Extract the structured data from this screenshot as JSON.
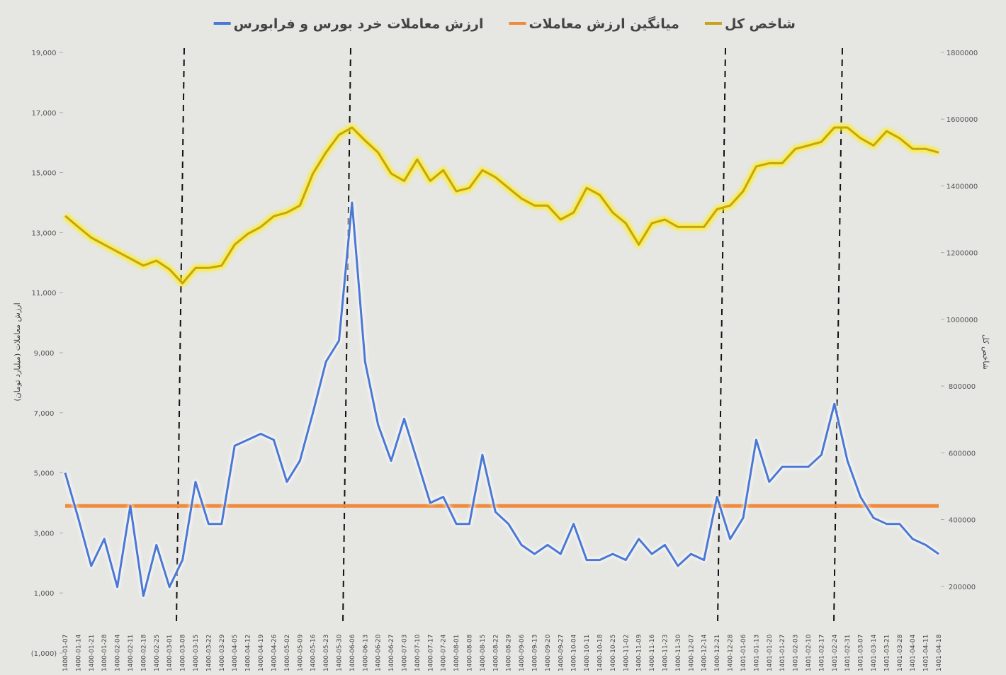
{
  "chart_data": {
    "type": "line",
    "legend": "top",
    "ylabel": "ارزش معاملات (میلیارد تومان)",
    "y2label": "شاخص کل",
    "ylim": [
      -1000,
      19000
    ],
    "yticks": [
      {
        "value": -1000,
        "label": "(1,000)"
      },
      {
        "value": 1000,
        "label": "1,000"
      },
      {
        "value": 3000,
        "label": "3,000"
      },
      {
        "value": 5000,
        "label": "5,000"
      },
      {
        "value": 7000,
        "label": "7,000"
      },
      {
        "value": 9000,
        "label": "9,000"
      },
      {
        "value": 11000,
        "label": "11,000"
      },
      {
        "value": 13000,
        "label": "13,000"
      },
      {
        "value": 15000,
        "label": "15,000"
      },
      {
        "value": 17000,
        "label": "17,000"
      },
      {
        "value": 19000,
        "label": "19,000"
      }
    ],
    "y2lim": [
      0,
      1800000
    ],
    "y2ticks": [
      200000,
      400000,
      600000,
      800000,
      1000000,
      1200000,
      1400000,
      1600000,
      1800000
    ],
    "categories": [
      "1400-01-07",
      "1400-01-14",
      "1400-01-21",
      "1400-01-28",
      "1400-02-04",
      "1400-02-11",
      "1400-02-18",
      "1400-02-25",
      "1400-03-01",
      "1400-03-08",
      "1400-03-15",
      "1400-03-22",
      "1400-03-29",
      "1400-04-05",
      "1400-04-12",
      "1400-04-19",
      "1400-04-26",
      "1400-05-02",
      "1400-05-09",
      "1400-05-16",
      "1400-05-23",
      "1400-05-30",
      "1400-06-06",
      "1400-06-13",
      "1400-06-20",
      "1400-06-27",
      "1400-07-03",
      "1400-07-10",
      "1400-07-17",
      "1400-07-24",
      "1400-08-01",
      "1400-08-08",
      "1400-08-15",
      "1400-08-22",
      "1400-08-29",
      "1400-09-06",
      "1400-09-13",
      "1400-09-20",
      "1400-09-27",
      "1400-10-04",
      "1400-10-11",
      "1400-10-18",
      "1400-10-25",
      "1400-11-02",
      "1400-11-09",
      "1400-11-16",
      "1400-11-23",
      "1400-11-30",
      "1400-12-07",
      "1400-12-14",
      "1400-12-21",
      "1400-12-28",
      "1401-01-06",
      "1401-01-13",
      "1401-01-20",
      "1401-01-27",
      "1401-02-03",
      "1401-02-10",
      "1401-02-17",
      "1401-02-24",
      "1401-02-31",
      "1401-03-07",
      "1401-03-14",
      "1401-03-21",
      "1401-03-28",
      "1401-04-04",
      "1401-04-11",
      "1401-04-18"
    ],
    "series": [
      {
        "name": "شاخص کل",
        "color": "#c8a21a",
        "axis": "y2",
        "values": [
          1310000,
          1277000,
          1245000,
          1224000,
          1203000,
          1182000,
          1161000,
          1176000,
          1150000,
          1108000,
          1154000,
          1154000,
          1161000,
          1224000,
          1256000,
          1277000,
          1309000,
          1320000,
          1341000,
          1437000,
          1500000,
          1553000,
          1575000,
          1536000,
          1500000,
          1437000,
          1415000,
          1479000,
          1415000,
          1447000,
          1384000,
          1394000,
          1447000,
          1426000,
          1394000,
          1362000,
          1341000,
          1341000,
          1299000,
          1320000,
          1394000,
          1373000,
          1320000,
          1288000,
          1224000,
          1288000,
          1299000,
          1277000,
          1277000,
          1277000,
          1330000,
          1341000,
          1384000,
          1458000,
          1468000,
          1468000,
          1511000,
          1521000,
          1532000,
          1575000,
          1575000,
          1543000,
          1521000,
          1564000,
          1543000,
          1511000,
          1511000,
          1500000
        ]
      },
      {
        "name": "میانگین ارزش معاملات",
        "color": "#f08a3c",
        "values": [
          3900,
          3900,
          3900,
          3900,
          3900,
          3900,
          3900,
          3900,
          3900,
          3900,
          3900,
          3900,
          3900,
          3900,
          3900,
          3900,
          3900,
          3900,
          3900,
          3900,
          3900,
          3900,
          3900,
          3900,
          3900,
          3900,
          3900,
          3900,
          3900,
          3900,
          3900,
          3900,
          3900,
          3900,
          3900,
          3900,
          3900,
          3900,
          3900,
          3900,
          3900,
          3900,
          3900,
          3900,
          3900,
          3900,
          3900,
          3900,
          3900,
          3900,
          3900,
          3900,
          3900,
          3900,
          3900,
          3900,
          3900,
          3900,
          3900,
          3900,
          3900,
          3900,
          3900,
          3900,
          3900,
          3900,
          3900,
          3900
        ]
      },
      {
        "name": "ارزش معاملات خرد بورس و فرابورس",
        "color": "#4a78d4",
        "values": [
          5000,
          3500,
          1900,
          2800,
          1200,
          3900,
          900,
          2600,
          1200,
          2100,
          4700,
          3300,
          3300,
          5900,
          6100,
          6300,
          6100,
          4700,
          5400,
          7000,
          8700,
          9400,
          14000,
          8700,
          6600,
          5400,
          6800,
          5400,
          4000,
          4200,
          3300,
          3300,
          5600,
          3700,
          3300,
          2600,
          2300,
          2600,
          2300,
          3300,
          2100,
          2100,
          2300,
          2100,
          2800,
          2300,
          2600,
          1900,
          2300,
          2100,
          4200,
          2800,
          3500,
          6100,
          4700,
          5200,
          5200,
          5200,
          5600,
          7300,
          5400,
          4200,
          3500,
          3300,
          3300,
          2800,
          2600,
          2300
        ]
      }
    ]
  }
}
